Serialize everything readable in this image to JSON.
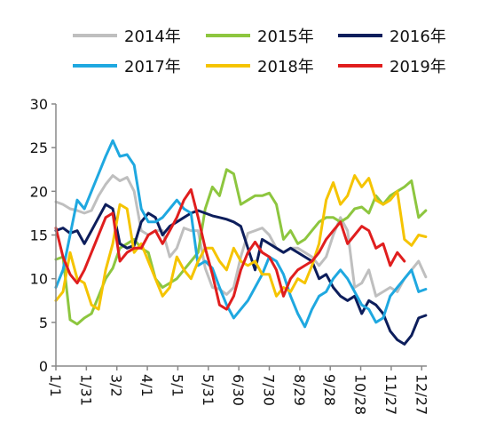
{
  "chart_data": {
    "type": "line",
    "title": "",
    "xlabel": "",
    "ylabel": "",
    "ylim": [
      0,
      30
    ],
    "yticks": [
      0,
      5,
      10,
      15,
      20,
      25,
      30
    ],
    "xlim": [
      0,
      365
    ],
    "xticks": [
      {
        "label": "1/1",
        "day": 0
      },
      {
        "label": "1/31",
        "day": 30
      },
      {
        "label": "3/2",
        "day": 60
      },
      {
        "label": "4/1",
        "day": 90
      },
      {
        "label": "5/1",
        "day": 120
      },
      {
        "label": "5/31",
        "day": 150
      },
      {
        "label": "6/30",
        "day": 180
      },
      {
        "label": "7/30",
        "day": 210
      },
      {
        "label": "8/29",
        "day": 240
      },
      {
        "label": "9/28",
        "day": 270
      },
      {
        "label": "10/28",
        "day": 300
      },
      {
        "label": "11/27",
        "day": 330
      },
      {
        "label": "12/27",
        "day": 360
      }
    ],
    "grid": false,
    "legend": "top",
    "series": [
      {
        "name": "2014年",
        "color": "#bfbfbf",
        "x": [
          0,
          7,
          14,
          21,
          28,
          35,
          42,
          49,
          56,
          63,
          70,
          77,
          84,
          91,
          98,
          105,
          112,
          119,
          126,
          133,
          140,
          147,
          154,
          161,
          168,
          175,
          182,
          189,
          196,
          203,
          210,
          217,
          224,
          231,
          238,
          245,
          252,
          259,
          266,
          273,
          280,
          287,
          294,
          301,
          308,
          315,
          322,
          329,
          336,
          343,
          350,
          357,
          364
        ],
        "values": [
          18.8,
          18.5,
          18,
          17.8,
          17.5,
          17.8,
          19.5,
          20.8,
          21.8,
          21.2,
          21.6,
          20,
          15.5,
          15,
          15.5,
          15.5,
          12.5,
          13.5,
          15.8,
          15.5,
          15.5,
          11.2,
          9,
          8.8,
          8.2,
          9,
          12.5,
          15.2,
          15.5,
          15.8,
          15,
          13.5,
          13,
          13.5,
          13.5,
          13,
          12.5,
          11.5,
          12.5,
          15,
          17,
          15.5,
          9,
          9.5,
          11,
          8,
          8.5,
          9,
          8.5,
          10,
          11,
          12,
          10.2
        ]
      },
      {
        "name": "2015年",
        "color": "#8dc63f",
        "x": [
          0,
          7,
          14,
          21,
          28,
          35,
          42,
          49,
          56,
          63,
          70,
          77,
          84,
          91,
          98,
          105,
          112,
          119,
          126,
          133,
          140,
          147,
          154,
          161,
          168,
          175,
          182,
          189,
          196,
          203,
          210,
          217,
          224,
          231,
          238,
          245,
          252,
          259,
          266,
          273,
          280,
          287,
          294,
          301,
          308,
          315,
          322,
          329,
          336,
          343,
          350,
          357,
          364
        ],
        "values": [
          12.2,
          12.5,
          5.3,
          4.8,
          5.5,
          6,
          8,
          10,
          11.2,
          13.5,
          14,
          14.5,
          13.5,
          13,
          10,
          9,
          9.5,
          10,
          11,
          12,
          13,
          18,
          20.5,
          19.5,
          22.5,
          22,
          18.5,
          19,
          19.5,
          19.5,
          19.8,
          18.5,
          14.5,
          15.5,
          14,
          14.5,
          15.5,
          16.5,
          17,
          17,
          16.5,
          17,
          18,
          18.2,
          17.5,
          19.5,
          18.5,
          19.5,
          20,
          20.5,
          21.2,
          17,
          17.8
        ]
      },
      {
        "name": "2016年",
        "color": "#0d1e5c",
        "x": [
          0,
          7,
          14,
          21,
          28,
          35,
          42,
          49,
          56,
          63,
          70,
          77,
          84,
          91,
          98,
          105,
          112,
          119,
          126,
          133,
          140,
          147,
          154,
          161,
          168,
          175,
          182,
          189,
          196,
          203,
          210,
          217,
          224,
          231,
          238,
          245,
          252,
          259,
          266,
          273,
          280,
          287,
          294,
          301,
          308,
          315,
          322,
          329,
          336,
          343,
          350,
          357,
          364
        ],
        "values": [
          15.5,
          15.8,
          15.2,
          15.5,
          14,
          15.5,
          17,
          18.5,
          18,
          14,
          13.5,
          13.8,
          16.5,
          17.5,
          17,
          15,
          16,
          16.5,
          17,
          17.5,
          17.8,
          17.5,
          17.2,
          17,
          16.8,
          16.5,
          16,
          13.5,
          11,
          14.5,
          14,
          13.5,
          13,
          13.5,
          13,
          12.5,
          12,
          10,
          10.5,
          9,
          8,
          7.5,
          8,
          6,
          7.5,
          7,
          6,
          4,
          3,
          2.5,
          3.5,
          5.5,
          5.8
        ]
      },
      {
        "name": "2017年",
        "color": "#1fa8e0",
        "x": [
          0,
          7,
          14,
          21,
          28,
          35,
          42,
          49,
          56,
          63,
          70,
          77,
          84,
          91,
          98,
          105,
          112,
          119,
          126,
          133,
          140,
          147,
          154,
          161,
          168,
          175,
          182,
          189,
          196,
          203,
          210,
          217,
          224,
          231,
          238,
          245,
          252,
          259,
          266,
          273,
          280,
          287,
          294,
          301,
          308,
          315,
          322,
          329,
          336,
          343,
          350,
          357,
          364
        ],
        "values": [
          9,
          11,
          15,
          19,
          18,
          20,
          22,
          24,
          25.8,
          24,
          24.2,
          23,
          18,
          16.5,
          16.5,
          17,
          18,
          19,
          18,
          17.5,
          11.5,
          12,
          11.2,
          9,
          7,
          5.5,
          6.5,
          7.5,
          9,
          10.5,
          12.5,
          12,
          10.5,
          8,
          6,
          4.5,
          6.5,
          8,
          8.5,
          10,
          11,
          10,
          8.5,
          7,
          6.5,
          5,
          5.5,
          8,
          9,
          10,
          11,
          8.5,
          8.8
        ]
      },
      {
        "name": "2018年",
        "color": "#f5c400",
        "x": [
          0,
          7,
          14,
          21,
          28,
          35,
          42,
          49,
          56,
          63,
          70,
          77,
          84,
          91,
          98,
          105,
          112,
          119,
          126,
          133,
          140,
          147,
          154,
          161,
          168,
          175,
          182,
          189,
          196,
          203,
          210,
          217,
          224,
          231,
          238,
          245,
          252,
          259,
          266,
          273,
          280,
          287,
          294,
          301,
          308,
          315,
          322,
          329,
          336,
          343,
          350,
          357,
          364
        ],
        "values": [
          7.5,
          8.5,
          13,
          10,
          9.5,
          7,
          6.5,
          11,
          14,
          18.5,
          18,
          13,
          14,
          12,
          10,
          8,
          9,
          12.5,
          11,
          10,
          12,
          13.5,
          13.5,
          12,
          11,
          13.5,
          12,
          11.5,
          12,
          10.5,
          10.5,
          8,
          9,
          8.5,
          10,
          9.5,
          11.5,
          14,
          19,
          21,
          18.5,
          19.5,
          21.8,
          20.5,
          21.5,
          19,
          18.5,
          19,
          20,
          14.5,
          13.8,
          15,
          14.8
        ]
      },
      {
        "name": "2019年",
        "color": "#e01e1e",
        "x": [
          0,
          7,
          14,
          21,
          28,
          35,
          42,
          49,
          56,
          63,
          70,
          77,
          84,
          91,
          98,
          105,
          112,
          119,
          126,
          133,
          140,
          147,
          154,
          161,
          168,
          175,
          182,
          189,
          196,
          203,
          210,
          217,
          224,
          231,
          238,
          245,
          252,
          259,
          266,
          273,
          280,
          287,
          294,
          301,
          308,
          315,
          322,
          329,
          336,
          343
        ],
        "values": [
          15.8,
          12.5,
          10.5,
          9.5,
          11,
          13,
          15,
          17,
          17.5,
          12,
          13,
          13.5,
          13.5,
          15,
          15.5,
          14,
          15.5,
          17,
          19,
          20.2,
          17,
          13.5,
          10.5,
          7,
          6.5,
          8,
          11,
          13,
          14.2,
          13,
          12.5,
          11,
          8,
          10,
          11,
          11.5,
          12,
          13,
          14.5,
          15.5,
          16.5,
          14,
          15,
          16,
          15.5,
          13.5,
          14,
          11.5,
          13,
          12
        ]
      }
    ]
  }
}
